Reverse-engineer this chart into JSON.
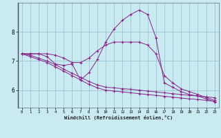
{
  "xlabel": "Windchill (Refroidissement éolien,°C)",
  "background_color": "#c8eaf0",
  "grid_color": "#a0c8d8",
  "line_color": "#882288",
  "xlim": [
    -0.5,
    23.5
  ],
  "ylim": [
    5.4,
    9.0
  ],
  "yticks": [
    6,
    7,
    8
  ],
  "xticks": [
    0,
    1,
    2,
    3,
    4,
    5,
    6,
    7,
    8,
    9,
    10,
    11,
    12,
    13,
    14,
    15,
    16,
    17,
    18,
    19,
    20,
    21,
    22,
    23
  ],
  "series1_x": [
    0,
    1,
    2,
    3,
    4,
    5,
    6,
    7,
    8,
    9,
    10,
    11,
    12,
    13,
    14,
    15,
    16,
    17,
    18,
    19,
    20,
    21,
    22,
    23
  ],
  "series1_y": [
    7.25,
    7.25,
    7.25,
    7.25,
    7.2,
    7.1,
    6.95,
    6.95,
    7.1,
    7.35,
    7.55,
    7.65,
    7.65,
    7.65,
    7.65,
    7.55,
    7.25,
    6.5,
    6.25,
    6.05,
    5.95,
    5.85,
    5.75,
    5.65
  ],
  "series2_x": [
    0,
    1,
    2,
    3,
    4,
    5,
    6,
    7,
    8,
    9,
    10,
    11,
    12,
    13,
    14,
    15,
    16,
    17,
    18,
    19,
    20,
    21,
    22,
    23
  ],
  "series2_y": [
    7.25,
    7.25,
    7.25,
    7.15,
    6.9,
    6.85,
    6.9,
    6.35,
    6.6,
    7.05,
    7.65,
    8.1,
    8.4,
    8.6,
    8.75,
    8.6,
    7.8,
    6.25,
    6.1,
    5.95,
    5.85,
    5.8,
    5.7,
    5.6
  ],
  "series3_x": [
    0,
    1,
    2,
    3,
    4,
    5,
    6,
    7,
    8,
    9,
    10,
    11,
    12,
    13,
    14,
    15,
    16,
    17,
    18,
    19,
    20,
    21,
    22,
    23
  ],
  "series3_y": [
    7.25,
    7.15,
    7.05,
    6.95,
    6.8,
    6.65,
    6.5,
    6.35,
    6.2,
    6.08,
    6.0,
    5.97,
    5.94,
    5.91,
    5.88,
    5.85,
    5.82,
    5.79,
    5.76,
    5.73,
    5.7,
    5.68,
    5.65,
    5.62
  ],
  "series4_x": [
    0,
    1,
    2,
    3,
    4,
    5,
    6,
    7,
    8,
    9,
    10,
    11,
    12,
    13,
    14,
    15,
    16,
    17,
    18,
    19,
    20,
    21,
    22,
    23
  ],
  "series4_y": [
    7.25,
    7.2,
    7.1,
    7.0,
    6.88,
    6.72,
    6.58,
    6.44,
    6.3,
    6.18,
    6.1,
    6.08,
    6.05,
    6.03,
    6.0,
    5.97,
    5.94,
    5.91,
    5.88,
    5.85,
    5.82,
    5.8,
    5.77,
    5.74
  ]
}
